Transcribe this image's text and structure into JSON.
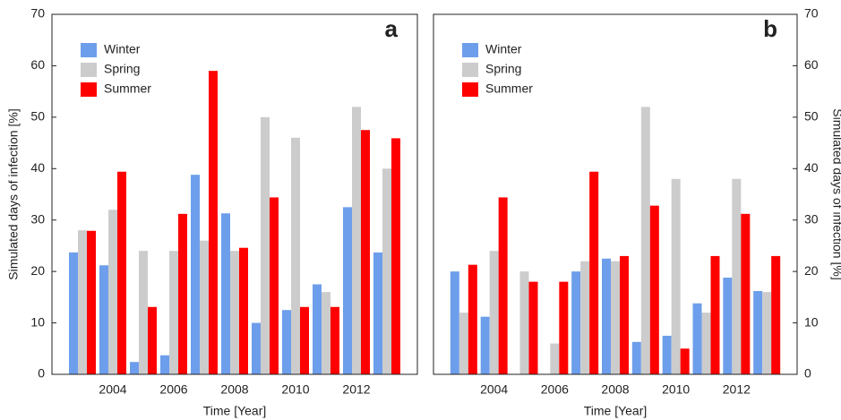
{
  "chart_data": [
    {
      "type": "bar",
      "panel_label": "a",
      "xlabel": "Time [Year]",
      "ylabel": "Simulated days of infection [%]",
      "y_axis_side": "left",
      "legend": "upper left",
      "categories": [
        null,
        "2004",
        null,
        "2006",
        null,
        "2008",
        null,
        "2010",
        null,
        "2012",
        null
      ],
      "ylim": [
        0,
        70
      ],
      "yticks": [
        0,
        10,
        20,
        30,
        40,
        50,
        60,
        70
      ],
      "series": [
        {
          "name": "Winter",
          "color": "#6d9eeb",
          "values": [
            23.7,
            21.2,
            2.4,
            3.7,
            38.8,
            31.3,
            10,
            12.5,
            17.5,
            32.5,
            23.7
          ]
        },
        {
          "name": "Spring",
          "color": "#cccccc",
          "values": [
            28,
            32,
            24,
            24,
            26,
            24,
            50,
            46,
            16,
            52,
            40
          ]
        },
        {
          "name": "Summer",
          "color": "#ff0000",
          "values": [
            27.9,
            39.4,
            13.1,
            31.2,
            59,
            24.6,
            34.4,
            13.1,
            13.1,
            47.5,
            45.9
          ]
        }
      ]
    },
    {
      "type": "bar",
      "panel_label": "b",
      "xlabel": "Time [Year]",
      "ylabel": "Simulated days of infection [%]",
      "y_axis_side": "right",
      "legend": "upper left",
      "categories": [
        null,
        "2004",
        null,
        "2006",
        null,
        "2008",
        null,
        "2010",
        null,
        "2012",
        null
      ],
      "ylim": [
        0,
        70
      ],
      "yticks": [
        0,
        10,
        20,
        30,
        40,
        50,
        60,
        70
      ],
      "series": [
        {
          "name": "Winter",
          "color": "#6d9eeb",
          "values": [
            20,
            11.2,
            0,
            0,
            20,
            22.5,
            6.3,
            7.5,
            13.8,
            18.8,
            16.2
          ]
        },
        {
          "name": "Spring",
          "color": "#cccccc",
          "values": [
            12,
            24,
            20,
            6,
            22,
            22,
            52,
            38,
            12,
            38,
            16
          ]
        },
        {
          "name": "Summer",
          "color": "#ff0000",
          "values": [
            21.3,
            34.4,
            18,
            18,
            39.4,
            23,
            32.8,
            5,
            23,
            31.2,
            23
          ]
        }
      ]
    }
  ]
}
